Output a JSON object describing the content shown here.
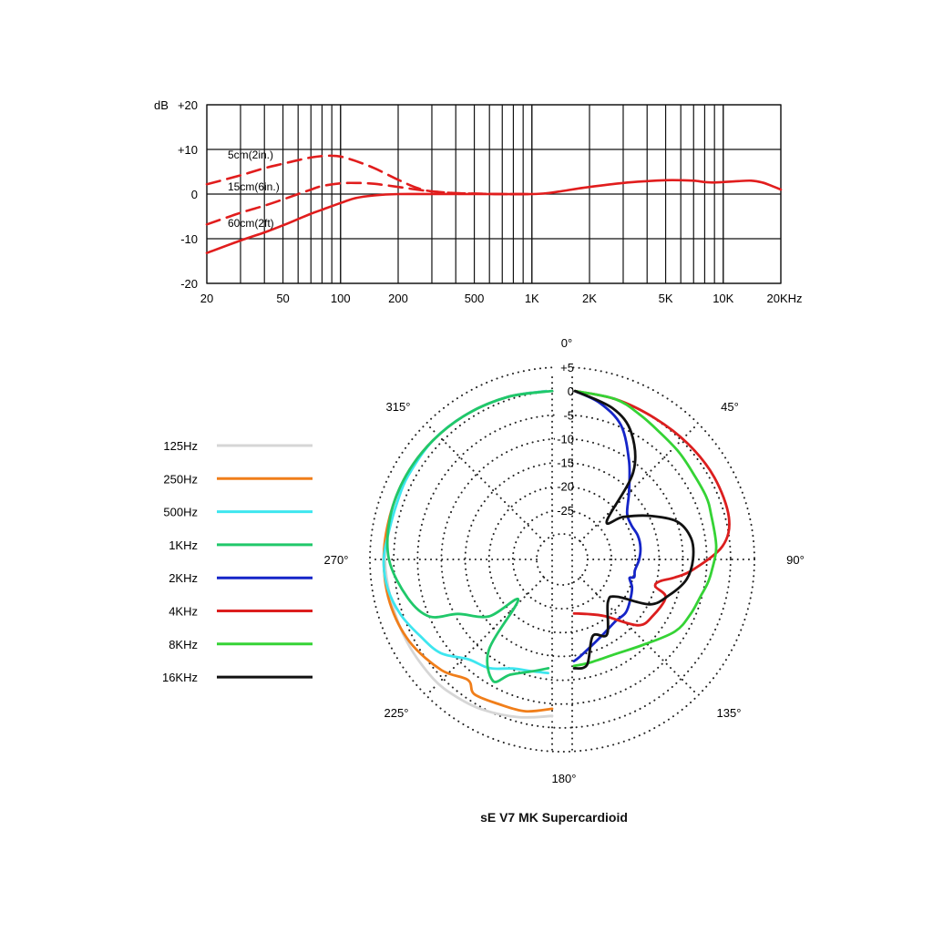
{
  "title": "sE V7 MK Supercardioid",
  "chart_data": [
    {
      "type": "line",
      "name": "frequency-response",
      "xscale": "log",
      "xlim": [
        20,
        20000
      ],
      "ylim": [
        -20,
        20
      ],
      "ylabel": "dB",
      "x_tick_values": [
        20,
        50,
        100,
        200,
        500,
        1000,
        2000,
        5000,
        10000,
        20000
      ],
      "x_tick_labels": [
        "20",
        "50",
        "100",
        "200",
        "500",
        "1K",
        "2K",
        "5K",
        "10K",
        "20KHz"
      ],
      "y_tick_values": [
        20,
        10,
        0,
        -10,
        -20
      ],
      "y_tick_labels": [
        "+20",
        "+10",
        "0",
        "-10",
        "-20"
      ],
      "grid": true,
      "series": [
        {
          "name": "5cm(2in.)",
          "style": "dashed",
          "color": "#e11d1d",
          "points": [
            [
              20,
              2.2
            ],
            [
              30,
              4.2
            ],
            [
              40,
              5.8
            ],
            [
              50,
              6.8
            ],
            [
              60,
              7.6
            ],
            [
              70,
              8.2
            ],
            [
              80,
              8.5
            ],
            [
              90,
              8.6
            ],
            [
              100,
              8.4
            ],
            [
              120,
              7.4
            ],
            [
              150,
              5.8
            ],
            [
              200,
              3.2
            ],
            [
              250,
              1.4
            ],
            [
              300,
              0.6
            ],
            [
              400,
              0.2
            ],
            [
              500,
              0.1
            ],
            [
              700,
              0
            ],
            [
              1000,
              0
            ]
          ]
        },
        {
          "name": "15cm(6in.)",
          "style": "dashed",
          "color": "#e11d1d",
          "points": [
            [
              20,
              -6.8
            ],
            [
              30,
              -4.2
            ],
            [
              40,
              -2.6
            ],
            [
              50,
              -1.2
            ],
            [
              60,
              0
            ],
            [
              70,
              1.0
            ],
            [
              80,
              1.8
            ],
            [
              100,
              2.4
            ],
            [
              120,
              2.5
            ],
            [
              150,
              2.3
            ],
            [
              200,
              1.6
            ],
            [
              250,
              1.0
            ],
            [
              300,
              0.6
            ],
            [
              400,
              0.2
            ],
            [
              500,
              0.1
            ],
            [
              700,
              0
            ],
            [
              1000,
              0
            ]
          ]
        },
        {
          "name": "60cm(2ft)",
          "style": "solid",
          "color": "#e11d1d",
          "points": [
            [
              20,
              -13.2
            ],
            [
              30,
              -10.4
            ],
            [
              40,
              -8.6
            ],
            [
              50,
              -7.0
            ],
            [
              60,
              -5.6
            ],
            [
              70,
              -4.4
            ],
            [
              80,
              -3.5
            ],
            [
              100,
              -2.0
            ],
            [
              120,
              -0.9
            ],
            [
              150,
              -0.3
            ],
            [
              200,
              0
            ],
            [
              300,
              0
            ],
            [
              500,
              0
            ],
            [
              700,
              0
            ],
            [
              1000,
              0
            ],
            [
              1200,
              0.2
            ],
            [
              1500,
              0.8
            ],
            [
              2000,
              1.6
            ],
            [
              3000,
              2.5
            ],
            [
              4000,
              2.9
            ],
            [
              5000,
              3.1
            ],
            [
              6000,
              3.1
            ],
            [
              7000,
              3.0
            ],
            [
              8000,
              2.7
            ],
            [
              9000,
              2.6
            ],
            [
              10000,
              2.7
            ],
            [
              12000,
              2.9
            ],
            [
              14000,
              3.0
            ],
            [
              16000,
              2.6
            ],
            [
              18000,
              1.8
            ],
            [
              20000,
              1.0
            ]
          ]
        }
      ]
    },
    {
      "type": "polar",
      "name": "polar-pattern",
      "r_unit": "dB",
      "r_range": [
        -30,
        5
      ],
      "ring_labels": [
        "+5",
        "0",
        "-5",
        "-10",
        "-15",
        "-20",
        "-25"
      ],
      "angle_labels": [
        {
          "deg": 0,
          "label": "0°"
        },
        {
          "deg": 45,
          "label": "45°"
        },
        {
          "deg": 90,
          "label": "90°"
        },
        {
          "deg": 135,
          "label": "135°"
        },
        {
          "deg": 180,
          "label": "180°"
        },
        {
          "deg": 225,
          "label": "225°"
        },
        {
          "deg": 270,
          "label": "270°"
        },
        {
          "deg": 315,
          "label": "315°"
        }
      ],
      "series": [
        {
          "name": "125Hz",
          "color": "#d6d6d6",
          "points": [
            [
              180,
              -2.5
            ],
            [
              192,
              -1.5
            ],
            [
              205,
              -0.6
            ],
            [
              215,
              -0.2
            ],
            [
              225,
              0
            ],
            [
              240,
              -0.3
            ],
            [
              255,
              -0.5
            ],
            [
              270,
              -0.3
            ],
            [
              285,
              -0.1
            ],
            [
              300,
              0
            ],
            [
              315,
              0
            ],
            [
              330,
              0
            ],
            [
              345,
              0
            ],
            [
              358,
              0
            ]
          ]
        },
        {
          "name": "250Hz",
          "color": "#f07e1a",
          "points": [
            [
              180,
              -4.0
            ],
            [
              190,
              -3.0
            ],
            [
              200,
              -3.0
            ],
            [
              210,
              -2.7
            ],
            [
              215,
              -4.5
            ],
            [
              225,
              -2.5
            ],
            [
              240,
              -0.8
            ],
            [
              255,
              -0.1
            ],
            [
              270,
              0
            ],
            [
              285,
              -0.1
            ],
            [
              300,
              0
            ],
            [
              315,
              0
            ],
            [
              330,
              0
            ],
            [
              345,
              0
            ],
            [
              358,
              0
            ]
          ]
        },
        {
          "name": "500Hz",
          "color": "#3ee6ef",
          "points": [
            [
              182,
              -11.5
            ],
            [
              190,
              -11.5
            ],
            [
              200,
              -11.0
            ],
            [
              210,
              -9.0
            ],
            [
              220,
              -8.0
            ],
            [
              230,
              -4.8
            ],
            [
              240,
              -3.3
            ],
            [
              250,
              -1.5
            ],
            [
              260,
              -0.3
            ],
            [
              270,
              0
            ],
            [
              280,
              -0.6
            ],
            [
              290,
              -0.7
            ],
            [
              300,
              -0.4
            ],
            [
              315,
              0
            ],
            [
              330,
              0
            ],
            [
              345,
              0
            ],
            [
              358,
              0
            ]
          ]
        },
        {
          "name": "1KHz",
          "color": "#20c86a",
          "points": [
            [
              182,
              -12.5
            ],
            [
              190,
              -11.5
            ],
            [
              200,
              -9.6
            ],
            [
              206,
              -7.0
            ],
            [
              215,
              -12.2
            ],
            [
              220,
              -24.3
            ],
            [
              228,
              -17.5
            ],
            [
              240,
              -12.5
            ],
            [
              245,
              -7.0
            ],
            [
              255,
              -4.0
            ],
            [
              270,
              -1.1
            ],
            [
              285,
              -0.2
            ],
            [
              300,
              0
            ],
            [
              315,
              0
            ],
            [
              330,
              0
            ],
            [
              345,
              0
            ],
            [
              360,
              0
            ]
          ]
        },
        {
          "name": "2KHz",
          "color": "#1525c8",
          "points": [
            [
              1,
              0
            ],
            [
              10,
              -2.0
            ],
            [
              20,
              -5.4
            ],
            [
              30,
              -11.5
            ],
            [
              40,
              -16.8
            ],
            [
              50,
              -20.3
            ],
            [
              60,
              -21.0
            ],
            [
              70,
              -20.7
            ],
            [
              80,
              -20.8
            ],
            [
              90,
              -21.3
            ],
            [
              100,
              -22.0
            ],
            [
              106,
              -21.8
            ],
            [
              108,
              -22.7
            ],
            [
              115,
              -21.5
            ],
            [
              125,
              -20.5
            ],
            [
              135,
              -19.5
            ],
            [
              145,
              -19.5
            ],
            [
              160,
              -18.0
            ],
            [
              175,
              -15.0
            ],
            [
              179,
              -14.0
            ]
          ]
        },
        {
          "name": "4KHz",
          "color": "#dc1e1e",
          "points": [
            [
              1,
              0
            ],
            [
              15,
              -0.5
            ],
            [
              30,
              -1.0
            ],
            [
              45,
              -1.0
            ],
            [
              60,
              -0.9
            ],
            [
              75,
              -1.3
            ],
            [
              85,
              -3.7
            ],
            [
              95,
              -10.0
            ],
            [
              100,
              -13.5
            ],
            [
              104,
              -16.4
            ],
            [
              108,
              -17.0
            ],
            [
              112,
              -14.2
            ],
            [
              125,
              -14.7
            ],
            [
              135,
              -15.8
            ],
            [
              150,
              -21.6
            ],
            [
              165,
              -23.5
            ],
            [
              178,
              -24.0
            ]
          ]
        },
        {
          "name": "8KHz",
          "color": "#35d335",
          "points": [
            [
              1,
              0
            ],
            [
              15,
              -0.5
            ],
            [
              25,
              -1.8
            ],
            [
              35,
              -3.0
            ],
            [
              45,
              -3.6
            ],
            [
              55,
              -4.2
            ],
            [
              65,
              -4.3
            ],
            [
              72,
              -4.7
            ],
            [
              85,
              -5.0
            ],
            [
              95,
              -6.0
            ],
            [
              100,
              -6.5
            ],
            [
              105,
              -7.2
            ],
            [
              115,
              -8.0
            ],
            [
              125,
              -9.0
            ],
            [
              140,
              -12.0
            ],
            [
              155,
              -13.5
            ],
            [
              170,
              -13.4
            ],
            [
              179,
              -13.0
            ]
          ]
        },
        {
          "name": "16KHz",
          "color": "#111111",
          "points": [
            [
              1,
              0
            ],
            [
              15,
              -2.5
            ],
            [
              25,
              -6.0
            ],
            [
              35,
              -13.0
            ],
            [
              42,
              -24.5
            ],
            [
              50,
              -21.5
            ],
            [
              60,
              -17.0
            ],
            [
              70,
              -12.0
            ],
            [
              80,
              -10.0
            ],
            [
              90,
              -10.0
            ],
            [
              100,
              -11.0
            ],
            [
              110,
              -13.6
            ],
            [
              120,
              -16.5
            ],
            [
              130,
              -23.2
            ],
            [
              140,
              -23.7
            ],
            [
              155,
              -18.0
            ],
            [
              165,
              -18.7
            ],
            [
              172,
              -13.0
            ],
            [
              179,
              -12.5
            ]
          ]
        }
      ]
    }
  ]
}
